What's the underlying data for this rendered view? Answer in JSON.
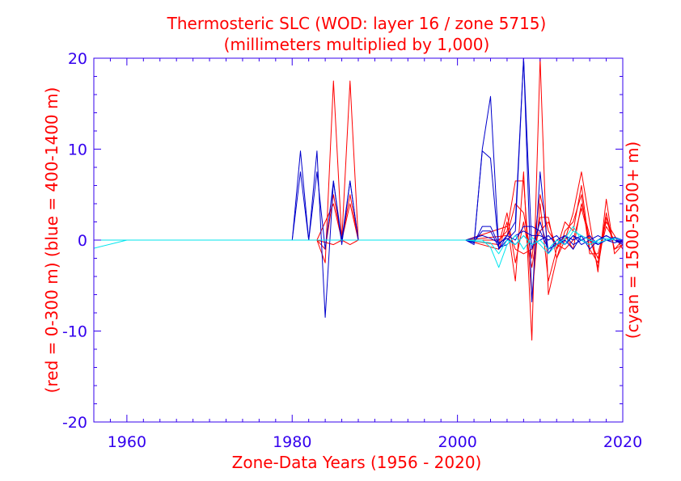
{
  "chart_data": {
    "type": "line",
    "title": "Thermosteric SLC (WOD: layer 16 / zone 5715)",
    "subtitle": "(millimeters multiplied by 1,000)",
    "xlabel": "Zone-Data Years (1956 - 2020)",
    "ylabel_left": "(red = 0-300 m)  (blue = 400-1400 m)",
    "ylabel_right": "(cyan = 1500-5500+ m)",
    "xlim": [
      1956,
      2020
    ],
    "ylim": [
      -20,
      20
    ],
    "x_ticks": [
      "1960",
      "1980",
      "2000",
      "2020"
    ],
    "y_ticks": [
      "20",
      "10",
      "0",
      "-10",
      "-20"
    ],
    "colors": {
      "red": "#ff0000",
      "blue": "#0000cc",
      "cyan": "#00e5ee",
      "axis": "#3300ee"
    },
    "series": [
      {
        "name": "red-1",
        "color": "red",
        "points": [
          [
            1956,
            0
          ],
          [
            1983,
            0
          ],
          [
            1984,
            -2.5
          ],
          [
            1985,
            17.5
          ],
          [
            1986,
            0
          ],
          [
            1987,
            17.5
          ],
          [
            1988,
            0
          ],
          [
            2001,
            0
          ],
          [
            2005,
            -1
          ],
          [
            2006,
            2
          ],
          [
            2007,
            -4.5
          ],
          [
            2008,
            7.5
          ],
          [
            2009,
            -11
          ],
          [
            2010,
            20
          ],
          [
            2011,
            -6
          ],
          [
            2012,
            -2
          ],
          [
            2013,
            0
          ],
          [
            2014,
            3
          ],
          [
            2015,
            7.5
          ],
          [
            2016,
            2
          ],
          [
            2017,
            -3.5
          ],
          [
            2018,
            4.5
          ],
          [
            2019,
            -1.5
          ],
          [
            2020,
            -0.5
          ]
        ]
      },
      {
        "name": "red-2",
        "color": "red",
        "points": [
          [
            1956,
            0
          ],
          [
            1983,
            0
          ],
          [
            1984,
            -1
          ],
          [
            1985,
            5
          ],
          [
            1986,
            0
          ],
          [
            1987,
            5
          ],
          [
            1988,
            0
          ],
          [
            2001,
            0
          ],
          [
            2005,
            0
          ],
          [
            2006,
            1
          ],
          [
            2007,
            6.5
          ],
          [
            2008,
            6.5
          ],
          [
            2009,
            -6.5
          ],
          [
            2010,
            4
          ],
          [
            2011,
            -4.5
          ],
          [
            2012,
            -1
          ],
          [
            2013,
            2
          ],
          [
            2014,
            1
          ],
          [
            2015,
            6
          ],
          [
            2016,
            -1
          ],
          [
            2017,
            -2.5
          ],
          [
            2018,
            3
          ],
          [
            2019,
            -1
          ],
          [
            2020,
            0
          ]
        ]
      },
      {
        "name": "red-3",
        "color": "red",
        "points": [
          [
            1956,
            0
          ],
          [
            1983,
            0
          ],
          [
            1985,
            4
          ],
          [
            1986,
            0
          ],
          [
            1987,
            4
          ],
          [
            1988,
            0
          ],
          [
            2001,
            0
          ],
          [
            2005,
            -0.5
          ],
          [
            2006,
            3
          ],
          [
            2007,
            -2.5
          ],
          [
            2008,
            2
          ],
          [
            2009,
            -3
          ],
          [
            2010,
            2.5
          ],
          [
            2011,
            2.5
          ],
          [
            2012,
            -2
          ],
          [
            2013,
            1
          ],
          [
            2014,
            2
          ],
          [
            2015,
            5
          ],
          [
            2016,
            -1.5
          ],
          [
            2017,
            -1.5
          ],
          [
            2018,
            2
          ],
          [
            2019,
            0.5
          ],
          [
            2020,
            -1
          ]
        ]
      },
      {
        "name": "red-4",
        "color": "red",
        "points": [
          [
            1956,
            0
          ],
          [
            1983,
            0
          ],
          [
            1985,
            -0.5
          ],
          [
            1986,
            0
          ],
          [
            1987,
            -0.5
          ],
          [
            1988,
            0
          ],
          [
            2001,
            0
          ],
          [
            2006,
            1.5
          ],
          [
            2007,
            -1
          ],
          [
            2008,
            -1.5
          ],
          [
            2009,
            -1
          ],
          [
            2010,
            1
          ],
          [
            2011,
            2
          ],
          [
            2012,
            -1
          ],
          [
            2013,
            0.5
          ],
          [
            2014,
            -1
          ],
          [
            2015,
            4
          ],
          [
            2016,
            0.5
          ],
          [
            2017,
            -3
          ],
          [
            2018,
            2.5
          ],
          [
            2019,
            -1
          ],
          [
            2020,
            -0.5
          ]
        ]
      },
      {
        "name": "red-5",
        "color": "red",
        "points": [
          [
            1956,
            0
          ],
          [
            2001,
            0
          ],
          [
            2006,
            0.5
          ],
          [
            2007,
            4
          ],
          [
            2008,
            3
          ],
          [
            2009,
            -2
          ],
          [
            2010,
            5
          ],
          [
            2011,
            1
          ],
          [
            2012,
            -0.5
          ],
          [
            2013,
            -1
          ],
          [
            2014,
            0
          ],
          [
            2015,
            3.5
          ],
          [
            2016,
            0
          ],
          [
            2017,
            -2
          ],
          [
            2018,
            1.5
          ],
          [
            2019,
            0
          ],
          [
            2020,
            -0.5
          ]
        ]
      },
      {
        "name": "blue-1",
        "color": "blue",
        "points": [
          [
            1956,
            0
          ],
          [
            1980,
            0
          ],
          [
            1981,
            9.8
          ],
          [
            1982,
            0
          ],
          [
            1983,
            9.8
          ],
          [
            1984,
            -8.5
          ],
          [
            1985,
            6.5
          ],
          [
            1986,
            -0.5
          ],
          [
            1987,
            6.5
          ],
          [
            1988,
            0
          ],
          [
            2001,
            0
          ],
          [
            2002,
            -0.5
          ],
          [
            2003,
            10
          ],
          [
            2004,
            15.8
          ],
          [
            2005,
            -1
          ],
          [
            2006,
            0.5
          ],
          [
            2007,
            2
          ],
          [
            2008,
            20
          ],
          [
            2009,
            -6.8
          ],
          [
            2010,
            7.5
          ],
          [
            2011,
            -1.5
          ],
          [
            2012,
            0
          ],
          [
            2013,
            0.5
          ],
          [
            2014,
            -0.5
          ],
          [
            2015,
            0
          ],
          [
            2016,
            -0.5
          ],
          [
            2017,
            0
          ],
          [
            2018,
            0.5
          ],
          [
            2019,
            0
          ],
          [
            2020,
            -0.5
          ]
        ]
      },
      {
        "name": "blue-2",
        "color": "blue",
        "points": [
          [
            1956,
            0
          ],
          [
            1980,
            0
          ],
          [
            1981,
            7.5
          ],
          [
            1982,
            0
          ],
          [
            1983,
            7.5
          ],
          [
            1984,
            -1
          ],
          [
            1985,
            6.5
          ],
          [
            1986,
            0
          ],
          [
            1987,
            6.5
          ],
          [
            1988,
            0
          ],
          [
            2001,
            0
          ],
          [
            2002,
            -0.3
          ],
          [
            2003,
            9.8
          ],
          [
            2004,
            9
          ],
          [
            2005,
            -1
          ],
          [
            2006,
            0
          ],
          [
            2007,
            1
          ],
          [
            2008,
            20
          ],
          [
            2009,
            -1
          ],
          [
            2010,
            2
          ],
          [
            2011,
            -1
          ],
          [
            2012,
            0
          ],
          [
            2013,
            -0.5
          ],
          [
            2014,
            0.5
          ],
          [
            2015,
            -0.5
          ],
          [
            2016,
            0
          ],
          [
            2017,
            0.5
          ],
          [
            2018,
            0
          ],
          [
            2019,
            0
          ],
          [
            2020,
            -0.3
          ]
        ]
      },
      {
        "name": "blue-3",
        "color": "blue",
        "points": [
          [
            1956,
            0
          ],
          [
            2001,
            0
          ],
          [
            2002,
            -0.3
          ],
          [
            2003,
            1.5
          ],
          [
            2004,
            1.5
          ],
          [
            2005,
            -0.5
          ],
          [
            2006,
            0.5
          ],
          [
            2007,
            0
          ],
          [
            2008,
            1.5
          ],
          [
            2009,
            1.5
          ],
          [
            2010,
            1
          ],
          [
            2011,
            -1
          ],
          [
            2012,
            -0.5
          ],
          [
            2013,
            0.5
          ],
          [
            2014,
            0
          ],
          [
            2015,
            0.5
          ],
          [
            2016,
            -1
          ],
          [
            2017,
            0
          ],
          [
            2018,
            0.5
          ],
          [
            2019,
            0
          ],
          [
            2020,
            -0.2
          ]
        ]
      },
      {
        "name": "blue-4",
        "color": "blue",
        "points": [
          [
            1956,
            0
          ],
          [
            2001,
            0
          ],
          [
            2002,
            -0.2
          ],
          [
            2003,
            1
          ],
          [
            2004,
            1
          ],
          [
            2005,
            -0.8
          ],
          [
            2006,
            -0.5
          ],
          [
            2007,
            0.5
          ],
          [
            2008,
            1
          ],
          [
            2009,
            0.5
          ],
          [
            2010,
            0.5
          ],
          [
            2011,
            0
          ],
          [
            2012,
            0.5
          ],
          [
            2013,
            -0.5
          ],
          [
            2014,
            0.5
          ],
          [
            2015,
            0
          ],
          [
            2016,
            0.5
          ],
          [
            2017,
            -0.5
          ],
          [
            2018,
            0
          ],
          [
            2019,
            0.3
          ],
          [
            2020,
            0
          ]
        ]
      },
      {
        "name": "blue-5",
        "color": "blue",
        "points": [
          [
            1956,
            0
          ],
          [
            2001,
            0
          ],
          [
            2003,
            0.5
          ],
          [
            2004,
            0.2
          ],
          [
            2005,
            -0.3
          ],
          [
            2006,
            0.2
          ],
          [
            2007,
            -0.5
          ],
          [
            2008,
            0.5
          ],
          [
            2009,
            -0.5
          ],
          [
            2010,
            0
          ],
          [
            2011,
            0.5
          ],
          [
            2012,
            -0.5
          ],
          [
            2013,
            0
          ],
          [
            2014,
            -1
          ],
          [
            2015,
            0.5
          ],
          [
            2016,
            0
          ],
          [
            2017,
            -0.5
          ],
          [
            2018,
            0
          ],
          [
            2019,
            -0.3
          ],
          [
            2020,
            0
          ]
        ]
      },
      {
        "name": "cyan-1",
        "color": "cyan",
        "points": [
          [
            1956,
            -0.9
          ],
          [
            1960,
            0
          ],
          [
            2001,
            0
          ],
          [
            2003,
            0
          ],
          [
            2004,
            -0.8
          ],
          [
            2005,
            -3
          ],
          [
            2006,
            -0.5
          ],
          [
            2007,
            0.5
          ],
          [
            2008,
            -1
          ],
          [
            2009,
            0.3
          ],
          [
            2010,
            -0.5
          ],
          [
            2011,
            -1.5
          ],
          [
            2012,
            -0.5
          ],
          [
            2013,
            0.2
          ],
          [
            2014,
            1.5
          ],
          [
            2015,
            0
          ],
          [
            2016,
            -0.5
          ],
          [
            2017,
            0
          ],
          [
            2018,
            0.2
          ],
          [
            2019,
            0
          ],
          [
            2020,
            0
          ]
        ]
      },
      {
        "name": "cyan-2",
        "color": "cyan",
        "points": [
          [
            1956,
            0
          ],
          [
            1960,
            0
          ],
          [
            2001,
            0
          ],
          [
            2004,
            -0.3
          ],
          [
            2005,
            -1.5
          ],
          [
            2006,
            0
          ],
          [
            2007,
            -0.5
          ],
          [
            2008,
            0.5
          ],
          [
            2009,
            -0.5
          ],
          [
            2010,
            0
          ],
          [
            2011,
            -1
          ],
          [
            2012,
            0
          ],
          [
            2013,
            -0.5
          ],
          [
            2014,
            1
          ],
          [
            2015,
            0.5
          ],
          [
            2016,
            0
          ],
          [
            2017,
            -0.3
          ],
          [
            2018,
            0
          ],
          [
            2019,
            0.2
          ],
          [
            2020,
            0
          ]
        ]
      }
    ]
  }
}
